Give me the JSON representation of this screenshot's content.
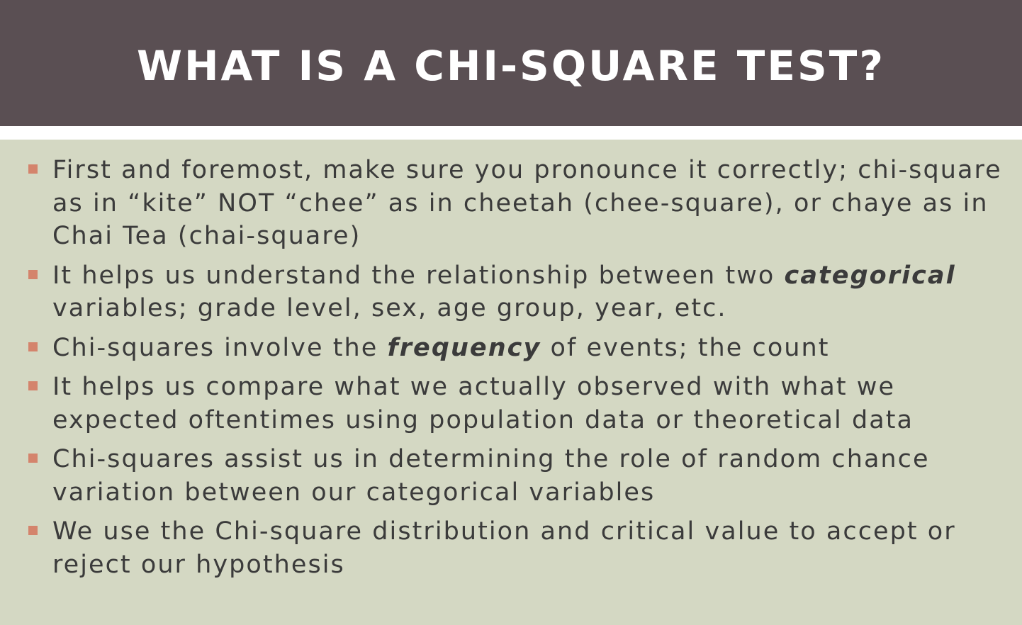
{
  "slide": {
    "title": "WHAT IS A CHI-SQUARE TEST?",
    "bullets": [
      {
        "id": "pronunciation",
        "parts": [
          {
            "text": "First and foremost, make sure you pronounce it correctly; chi-square as in “kite” NOT “chee” as in cheetah (chee-square), or chaye as in Chai Tea (chai-square)"
          }
        ]
      },
      {
        "id": "relationship",
        "parts": [
          {
            "text": "It helps us understand the relationship between two "
          },
          {
            "text": "categorical",
            "emphasis": true
          },
          {
            "text": " variables; grade level, sex, age group, year, etc."
          }
        ]
      },
      {
        "id": "frequency",
        "parts": [
          {
            "text": "Chi-squares involve the "
          },
          {
            "text": "frequency",
            "emphasis": true
          },
          {
            "text": " of events; the count"
          }
        ]
      },
      {
        "id": "observed-expected",
        "parts": [
          {
            "text": "It helps us compare what we actually observed with what we expected oftentimes using population data or theoretical data"
          }
        ]
      },
      {
        "id": "random-chance",
        "parts": [
          {
            "text": "Chi-squares assist us in determining the role of random chance variation between our categorical variables"
          }
        ]
      },
      {
        "id": "distribution",
        "parts": [
          {
            "text": "We use the Chi-square distribution and critical value to accept or reject our hypothesis"
          }
        ]
      }
    ]
  },
  "colors": {
    "title_bar": "#5a4f53",
    "title_text": "#ffffff",
    "body_background": "#d4d8c3",
    "body_text": "#3b3b3b",
    "bullet_marker": "#d4846c"
  }
}
